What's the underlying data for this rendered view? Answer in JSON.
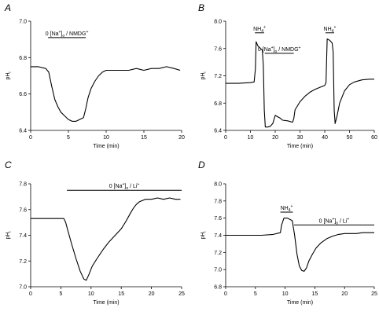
{
  "chart_data": [
    {
      "id": "A",
      "panel_label": "A",
      "type": "line",
      "xlabel": "Time (min)",
      "ylabel": "pHi",
      "xlim": [
        0,
        20
      ],
      "ylim": [
        6.4,
        7.0
      ],
      "xticks": [
        0,
        5,
        10,
        15,
        20
      ],
      "yticks": [
        6.4,
        6.6,
        6.8,
        7.0
      ],
      "y_decimals": 1,
      "series": [
        {
          "x": [
            0,
            1,
            2,
            2.4,
            2.8,
            3.2,
            3.6,
            4.0,
            4.5,
            5.0,
            5.5,
            6.0,
            6.5,
            7.0,
            7.3,
            7.6,
            8.0,
            8.5,
            9.0,
            9.5,
            10,
            11,
            12,
            13,
            14,
            15,
            16,
            17,
            18,
            19,
            19.8
          ],
          "y": [
            6.75,
            6.75,
            6.74,
            6.72,
            6.64,
            6.57,
            6.53,
            6.5,
            6.48,
            6.46,
            6.45,
            6.45,
            6.46,
            6.47,
            6.52,
            6.58,
            6.63,
            6.67,
            6.7,
            6.72,
            6.73,
            6.73,
            6.73,
            6.73,
            6.74,
            6.73,
            6.74,
            6.74,
            6.75,
            6.74,
            6.73
          ]
        }
      ],
      "annotations": [
        {
          "text": "0 [Na+]o / NMDG+",
          "x1": 2.3,
          "x2": 7.3,
          "y": 6.91
        }
      ]
    },
    {
      "id": "B",
      "panel_label": "B",
      "type": "line",
      "xlabel": "Time (min)",
      "ylabel": "pHi",
      "xlim": [
        0,
        60
      ],
      "ylim": [
        6.4,
        8.0
      ],
      "xticks": [
        0,
        10,
        20,
        30,
        40,
        50,
        60
      ],
      "yticks": [
        6.4,
        6.8,
        7.2,
        7.6,
        8.0
      ],
      "y_decimals": 1,
      "series": [
        {
          "x": [
            0,
            5,
            10,
            11.5,
            12,
            12.3,
            13,
            14,
            14.8,
            15.2,
            15.6,
            16,
            17,
            18,
            19,
            20,
            21,
            22,
            23,
            25,
            27,
            27.5,
            28,
            30,
            32,
            34,
            36,
            38,
            40,
            40.5,
            41,
            42,
            43,
            43.4,
            43.8,
            44.2,
            45,
            46,
            48,
            50,
            52,
            55,
            58,
            60
          ],
          "y": [
            7.09,
            7.09,
            7.1,
            7.11,
            7.3,
            7.7,
            7.64,
            7.6,
            7.58,
            7.35,
            6.7,
            6.45,
            6.45,
            6.46,
            6.5,
            6.62,
            6.6,
            6.58,
            6.55,
            6.54,
            6.52,
            6.57,
            6.7,
            6.82,
            6.9,
            6.96,
            7.0,
            7.03,
            7.06,
            7.1,
            7.74,
            7.72,
            7.68,
            7.55,
            6.7,
            6.5,
            6.62,
            6.8,
            6.98,
            7.07,
            7.11,
            7.14,
            7.15,
            7.15
          ]
        }
      ],
      "annotations": [
        {
          "text": "NH4+",
          "x1": 11.8,
          "x2": 15.5,
          "y": 7.83
        },
        {
          "text": "0 [Na+]o / NMDG+",
          "x1": 15.8,
          "x2": 27.5,
          "y": 7.53
        },
        {
          "text": "NH4+",
          "x1": 40.3,
          "x2": 43.8,
          "y": 7.83
        }
      ]
    },
    {
      "id": "C",
      "panel_label": "C",
      "type": "line",
      "xlabel": "Time (min)",
      "ylabel": "pHi",
      "xlim": [
        0,
        25
      ],
      "ylim": [
        7.0,
        7.8
      ],
      "xticks": [
        0,
        5,
        10,
        15,
        20,
        25
      ],
      "yticks": [
        7.0,
        7.2,
        7.4,
        7.6,
        7.8
      ],
      "y_decimals": 1,
      "series": [
        {
          "x": [
            0,
            2,
            4,
            5.5,
            5.8,
            6.2,
            6.8,
            7.5,
            8.2,
            8.8,
            9.2,
            9.6,
            10.2,
            11,
            12,
            13,
            14,
            15,
            15.8,
            16.5,
            17,
            17.5,
            18,
            19,
            20,
            21,
            22,
            23,
            24,
            24.8
          ],
          "y": [
            7.53,
            7.53,
            7.53,
            7.53,
            7.5,
            7.43,
            7.33,
            7.22,
            7.12,
            7.06,
            7.05,
            7.09,
            7.16,
            7.22,
            7.29,
            7.35,
            7.4,
            7.45,
            7.51,
            7.57,
            7.61,
            7.64,
            7.66,
            7.68,
            7.68,
            7.69,
            7.68,
            7.69,
            7.68,
            7.68
          ]
        }
      ],
      "annotations": [
        {
          "text": "0 [Na+]o / Li+",
          "x1": 6.0,
          "x2": 25.0,
          "y": 7.75
        }
      ]
    },
    {
      "id": "D",
      "panel_label": "D",
      "type": "line",
      "xlabel": "Time (min)",
      "ylabel": "pHi",
      "xlim": [
        0,
        25
      ],
      "ylim": [
        6.8,
        8.0
      ],
      "xticks": [
        0,
        5,
        10,
        15,
        20,
        25
      ],
      "yticks": [
        6.8,
        7.0,
        7.2,
        7.4,
        7.6,
        7.8,
        8.0
      ],
      "y_decimals": 1,
      "series": [
        {
          "x": [
            0,
            2,
            4,
            6,
            8,
            9.2,
            9.4,
            9.8,
            10.4,
            11.2,
            11.6,
            12.0,
            12.4,
            12.8,
            13.2,
            13.6,
            14.0,
            14.6,
            15.2,
            16,
            17,
            18,
            19,
            20,
            21,
            22,
            23,
            24,
            25
          ],
          "y": [
            7.4,
            7.4,
            7.4,
            7.4,
            7.41,
            7.43,
            7.52,
            7.6,
            7.6,
            7.57,
            7.4,
            7.18,
            7.04,
            6.99,
            6.98,
            7.02,
            7.1,
            7.18,
            7.25,
            7.31,
            7.36,
            7.39,
            7.41,
            7.42,
            7.42,
            7.42,
            7.43,
            7.43,
            7.43
          ]
        }
      ],
      "annotations": [
        {
          "text": "NH4+",
          "x1": 9.2,
          "x2": 11.3,
          "y": 7.67
        },
        {
          "text": "0 [Na+]o / Li+",
          "x1": 11.5,
          "x2": 25.0,
          "y": 7.52
        }
      ]
    }
  ]
}
